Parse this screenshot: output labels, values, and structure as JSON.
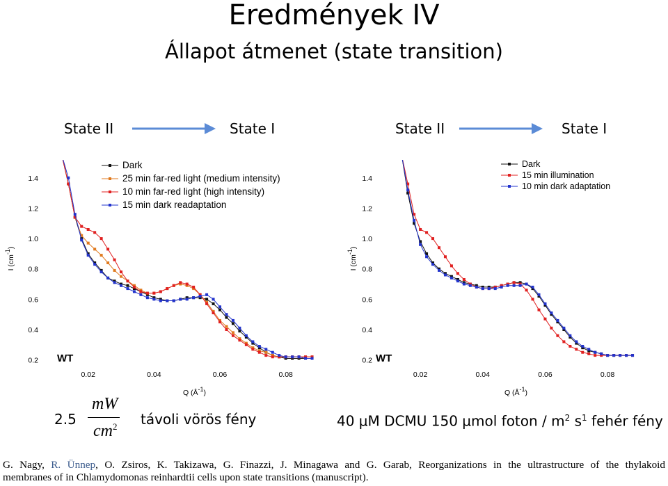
{
  "slide": {
    "title": "Eredmények IV",
    "subtitle": "Állapot átmenet (state transition)"
  },
  "transitions": [
    {
      "from": "State II",
      "to": "State I"
    },
    {
      "from": "State II",
      "to": "State I"
    }
  ],
  "conditions": {
    "left_value": "2.5",
    "left_unit_num": "mW",
    "left_unit_den": "cm",
    "left_unit_exp": "2",
    "left_text": "távoli vörös fény",
    "right_text_main": "40 µM DCMU 150 µmol foton / m",
    "right_text_exp1": "2",
    "right_text_mid": " s",
    "right_text_exp2": "1",
    "right_text_end": " fehér fény"
  },
  "reference": {
    "line1_a": "G. Nagy, ",
    "line1_b": "R. Ünnep",
    "line1_c": ", O. Zsiros, K. Takizawa, G. Finazzi, J. Minagawa and G. Garab, Reorganizations in the ultrastructure of the thylakoid",
    "line2": "membranes of in Chlamydomonas reinhardtii cells upon state transitions (manuscript)."
  },
  "chart_data": [
    {
      "type": "line",
      "panel_label": "WT",
      "xlabel": "Q (Å-1)",
      "ylabel": "I (cm-1)",
      "xlim": [
        0.0095,
        0.09
      ],
      "ylim": [
        0.18,
        1.5
      ],
      "xticks": [
        "0.02",
        "0.04",
        "0.06",
        "0.08"
      ],
      "yticks": [
        "0.2",
        "0.4",
        "0.6",
        "0.8",
        "1.0",
        "1.2",
        "1.4"
      ],
      "legend_position": "top-right",
      "series": [
        {
          "name": "Dark",
          "color": "#111111",
          "x": [
            0.012,
            0.014,
            0.016,
            0.018,
            0.02,
            0.022,
            0.024,
            0.026,
            0.028,
            0.03,
            0.032,
            0.034,
            0.036,
            0.038,
            0.04,
            0.042,
            0.044,
            0.046,
            0.048,
            0.05,
            0.052,
            0.054,
            0.056,
            0.058,
            0.06,
            0.062,
            0.064,
            0.066,
            0.068,
            0.07,
            0.072,
            0.074,
            0.076,
            0.078,
            0.08,
            0.082,
            0.084,
            0.086,
            0.088
          ],
          "y": [
            1.55,
            1.36,
            1.14,
            1.0,
            0.9,
            0.84,
            0.79,
            0.74,
            0.72,
            0.7,
            0.69,
            0.67,
            0.65,
            0.63,
            0.61,
            0.6,
            0.59,
            0.59,
            0.6,
            0.61,
            0.61,
            0.61,
            0.6,
            0.57,
            0.53,
            0.48,
            0.44,
            0.39,
            0.35,
            0.31,
            0.28,
            0.25,
            0.23,
            0.22,
            0.21,
            0.21,
            0.21,
            0.21,
            0.21
          ]
        },
        {
          "name": "25 min far-red light (medium intensity)",
          "color": "#e07a1f",
          "x": [
            0.012,
            0.014,
            0.016,
            0.018,
            0.02,
            0.022,
            0.024,
            0.026,
            0.028,
            0.03,
            0.032,
            0.034,
            0.036,
            0.038,
            0.04,
            0.042,
            0.044,
            0.046,
            0.048,
            0.05,
            0.052,
            0.054,
            0.056,
            0.058,
            0.06,
            0.062,
            0.064,
            0.066,
            0.068,
            0.07,
            0.072,
            0.074,
            0.076,
            0.078,
            0.08,
            0.082,
            0.084,
            0.086,
            0.088
          ],
          "y": [
            1.55,
            1.36,
            1.14,
            1.02,
            0.97,
            0.93,
            0.89,
            0.84,
            0.79,
            0.75,
            0.72,
            0.69,
            0.66,
            0.64,
            0.64,
            0.65,
            0.67,
            0.69,
            0.7,
            0.69,
            0.67,
            0.63,
            0.58,
            0.52,
            0.46,
            0.42,
            0.38,
            0.34,
            0.31,
            0.28,
            0.26,
            0.25,
            0.23,
            0.22,
            0.22,
            0.22,
            0.22,
            0.22,
            0.22
          ]
        },
        {
          "name": "10 min far-red light (high intensity)",
          "color": "#e02020",
          "x": [
            0.012,
            0.014,
            0.016,
            0.018,
            0.02,
            0.022,
            0.024,
            0.026,
            0.028,
            0.03,
            0.032,
            0.034,
            0.036,
            0.038,
            0.04,
            0.042,
            0.044,
            0.046,
            0.048,
            0.05,
            0.052,
            0.054,
            0.056,
            0.058,
            0.06,
            0.062,
            0.064,
            0.066,
            0.068,
            0.07,
            0.072,
            0.074,
            0.076,
            0.078,
            0.08,
            0.082,
            0.084,
            0.086,
            0.088
          ],
          "y": [
            1.55,
            1.36,
            1.14,
            1.08,
            1.06,
            1.04,
            1.0,
            0.93,
            0.86,
            0.78,
            0.72,
            0.68,
            0.65,
            0.64,
            0.64,
            0.65,
            0.67,
            0.69,
            0.71,
            0.7,
            0.68,
            0.63,
            0.57,
            0.51,
            0.45,
            0.4,
            0.36,
            0.33,
            0.3,
            0.27,
            0.25,
            0.23,
            0.22,
            0.22,
            0.22,
            0.22,
            0.22,
            0.22,
            0.22
          ]
        },
        {
          "name": "15 min dark readaptation",
          "color": "#2233cc",
          "x": [
            0.012,
            0.014,
            0.016,
            0.018,
            0.02,
            0.022,
            0.024,
            0.026,
            0.028,
            0.03,
            0.032,
            0.034,
            0.036,
            0.038,
            0.04,
            0.042,
            0.044,
            0.046,
            0.048,
            0.05,
            0.052,
            0.054,
            0.056,
            0.058,
            0.06,
            0.062,
            0.064,
            0.066,
            0.068,
            0.07,
            0.072,
            0.074,
            0.076,
            0.078,
            0.08,
            0.082,
            0.084,
            0.086,
            0.088
          ],
          "y": [
            1.55,
            1.4,
            1.16,
            0.99,
            0.89,
            0.83,
            0.78,
            0.74,
            0.71,
            0.69,
            0.67,
            0.65,
            0.63,
            0.61,
            0.6,
            0.59,
            0.59,
            0.59,
            0.6,
            0.6,
            0.61,
            0.62,
            0.63,
            0.6,
            0.55,
            0.5,
            0.46,
            0.41,
            0.36,
            0.32,
            0.29,
            0.27,
            0.25,
            0.23,
            0.22,
            0.22,
            0.22,
            0.21,
            0.21
          ]
        }
      ]
    },
    {
      "type": "line",
      "panel_label": "WT",
      "xlabel": "Q (Å-1)",
      "ylabel": "I (cm-1)",
      "xlim": [
        0.0095,
        0.09
      ],
      "ylim": [
        0.18,
        1.5
      ],
      "xticks": [
        "0.02",
        "0.04",
        "0.06",
        "0.08"
      ],
      "yticks": [
        "0.2",
        "0.4",
        "0.6",
        "0.8",
        "1.0",
        "1.2",
        "1.4"
      ],
      "legend_position": "top-right",
      "series": [
        {
          "name": "Dark",
          "color": "#111111",
          "x": [
            0.014,
            0.016,
            0.018,
            0.02,
            0.022,
            0.024,
            0.026,
            0.028,
            0.03,
            0.032,
            0.034,
            0.036,
            0.038,
            0.04,
            0.042,
            0.044,
            0.046,
            0.048,
            0.05,
            0.052,
            0.054,
            0.056,
            0.058,
            0.06,
            0.062,
            0.064,
            0.066,
            0.068,
            0.07,
            0.072,
            0.074,
            0.076,
            0.078,
            0.08,
            0.082,
            0.084,
            0.086,
            0.088
          ],
          "y": [
            1.55,
            1.3,
            1.1,
            0.98,
            0.9,
            0.84,
            0.8,
            0.77,
            0.75,
            0.73,
            0.71,
            0.7,
            0.69,
            0.68,
            0.68,
            0.68,
            0.69,
            0.7,
            0.71,
            0.71,
            0.7,
            0.67,
            0.62,
            0.56,
            0.5,
            0.45,
            0.4,
            0.35,
            0.31,
            0.28,
            0.26,
            0.25,
            0.24,
            0.23,
            0.23,
            0.23,
            0.23,
            0.23
          ]
        },
        {
          "name": "15 min illumination",
          "color": "#e02020",
          "x": [
            0.014,
            0.016,
            0.018,
            0.02,
            0.022,
            0.024,
            0.026,
            0.028,
            0.03,
            0.032,
            0.034,
            0.036,
            0.038,
            0.04,
            0.042,
            0.044,
            0.046,
            0.048,
            0.05,
            0.052,
            0.054,
            0.056,
            0.058,
            0.06,
            0.062,
            0.064,
            0.066,
            0.068,
            0.07,
            0.072,
            0.074,
            0.076,
            0.078,
            0.08,
            0.082,
            0.084,
            0.086,
            0.088
          ],
          "y": [
            1.55,
            1.36,
            1.16,
            1.06,
            1.04,
            1.0,
            0.94,
            0.88,
            0.82,
            0.77,
            0.73,
            0.7,
            0.68,
            0.67,
            0.67,
            0.68,
            0.69,
            0.7,
            0.71,
            0.7,
            0.66,
            0.6,
            0.53,
            0.47,
            0.41,
            0.36,
            0.32,
            0.29,
            0.27,
            0.25,
            0.24,
            0.23,
            0.23,
            0.23,
            0.23,
            0.23,
            0.23,
            0.23
          ]
        },
        {
          "name": "10 min dark adaptation",
          "color": "#2233cc",
          "x": [
            0.014,
            0.016,
            0.018,
            0.02,
            0.022,
            0.024,
            0.026,
            0.028,
            0.03,
            0.032,
            0.034,
            0.036,
            0.038,
            0.04,
            0.042,
            0.044,
            0.046,
            0.048,
            0.05,
            0.052,
            0.054,
            0.056,
            0.058,
            0.06,
            0.062,
            0.064,
            0.066,
            0.068,
            0.07,
            0.072,
            0.074,
            0.076,
            0.078,
            0.08,
            0.082,
            0.084,
            0.086,
            0.088
          ],
          "y": [
            1.55,
            1.32,
            1.12,
            0.96,
            0.88,
            0.83,
            0.79,
            0.76,
            0.74,
            0.72,
            0.7,
            0.69,
            0.68,
            0.67,
            0.67,
            0.67,
            0.68,
            0.69,
            0.69,
            0.69,
            0.7,
            0.68,
            0.63,
            0.57,
            0.51,
            0.46,
            0.41,
            0.36,
            0.32,
            0.29,
            0.27,
            0.25,
            0.24,
            0.23,
            0.23,
            0.23,
            0.23,
            0.23
          ]
        }
      ]
    }
  ]
}
